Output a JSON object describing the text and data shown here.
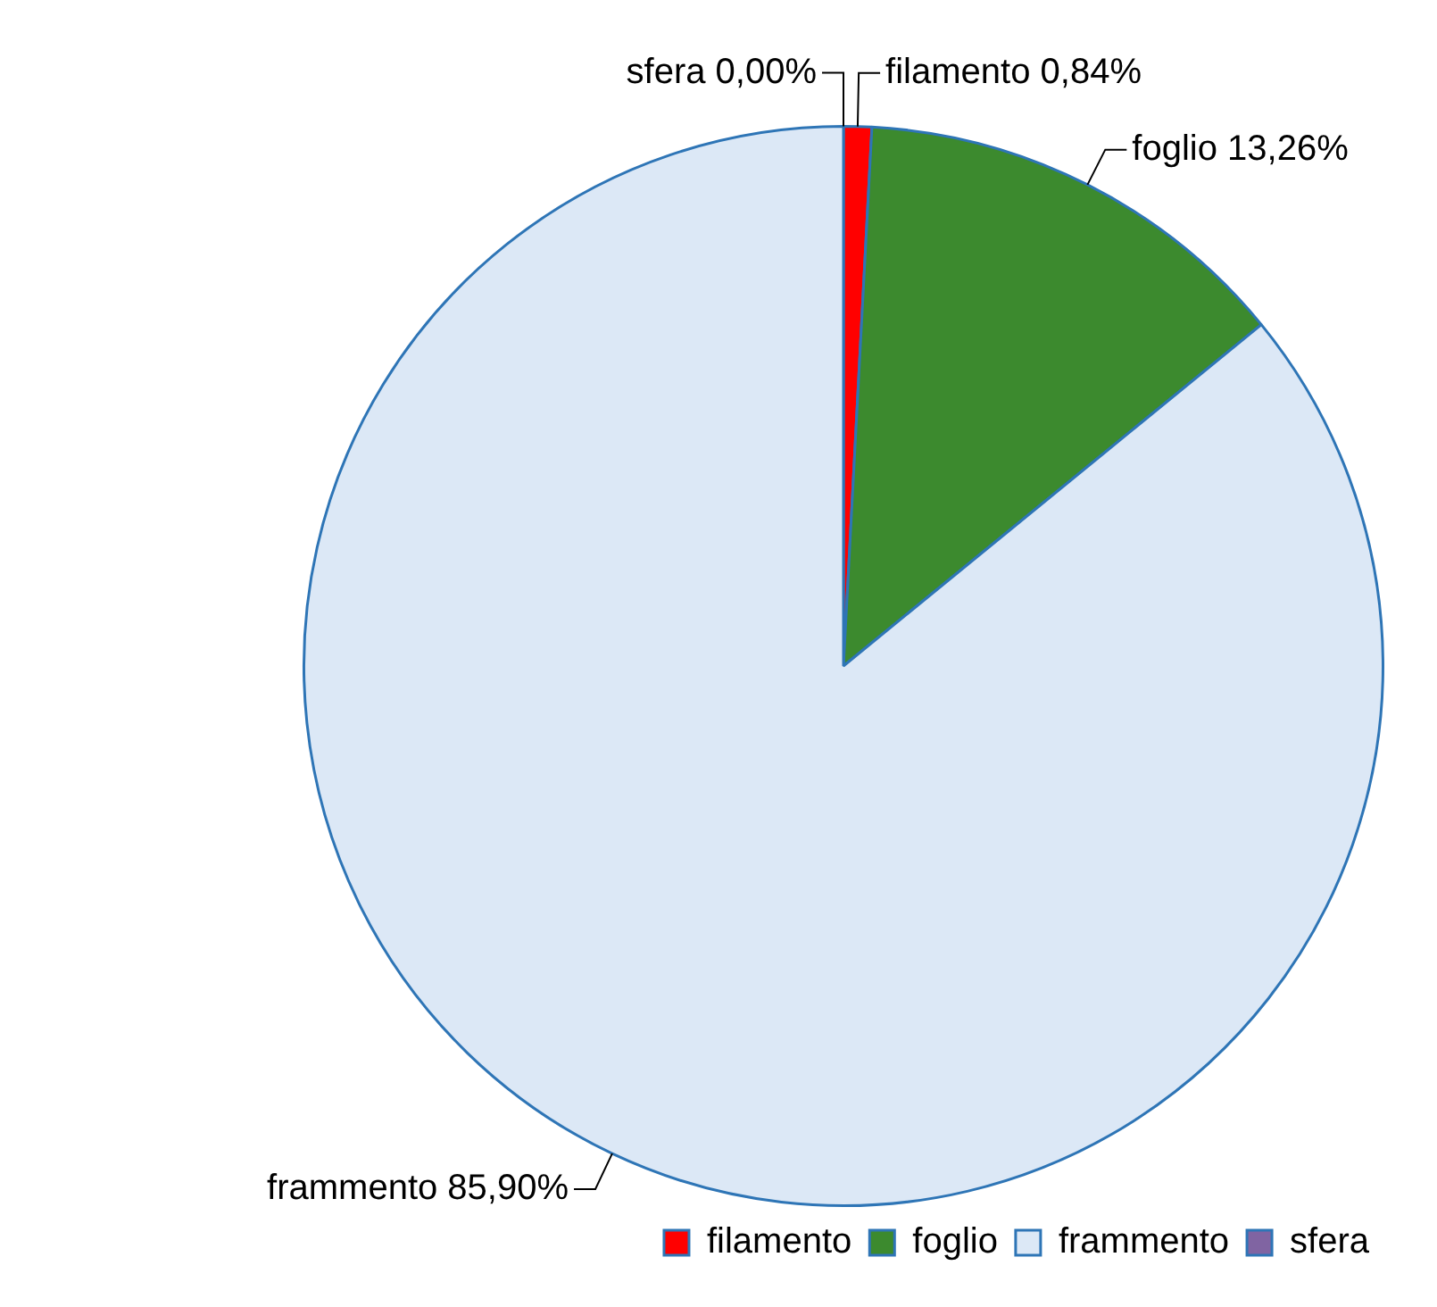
{
  "chart_data": {
    "type": "pie",
    "categories": [
      "filamento",
      "foglio",
      "frammento",
      "sfera"
    ],
    "values": [
      0.84,
      13.26,
      85.9,
      0.0
    ],
    "value_labels": [
      "0,84%",
      "13,26%",
      "85,90%",
      "0,00%"
    ],
    "colors": [
      "#ff0000",
      "#3c8a2e",
      "#dce8f6",
      "#8064a2"
    ],
    "legend": "bottom right"
  }
}
